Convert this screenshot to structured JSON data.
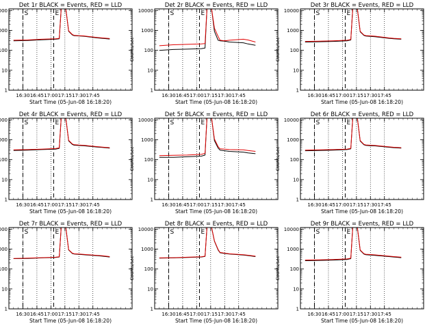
{
  "figure": {
    "ylabel": "Counts/sec",
    "xlabel": "Start Time (05-Jun-08 16:18:20)",
    "colors": {
      "events": "#000000",
      "lld": "#e00000",
      "axes": "#000000"
    }
  },
  "chart_data": [
    {
      "type": "line",
      "title": "Det 1r BLACK = Events, RED = LLD",
      "xlabel": "Start Time (05-Jun-08 16:18:20)",
      "ylabel": "Counts/sec",
      "yscale": "log",
      "ylim": [
        1,
        12000
      ],
      "yticks": [
        1,
        10,
        100,
        1000,
        10000
      ],
      "ytick_labels": [
        "1",
        "10",
        "100",
        "1000",
        "10000"
      ],
      "xticks": [
        "16:30",
        "16:45",
        "17:00",
        "17:15",
        "17:30",
        "17:45"
      ],
      "markers": [
        {
          "label": "S",
          "time": "17:05"
        },
        {
          "label": "E",
          "time": "17:38"
        }
      ],
      "series": [
        {
          "name": "Events",
          "color": "#000000",
          "time_min": [
            1015,
            1030,
            1045,
            1060,
            1064,
            1066,
            1068,
            1071,
            1074,
            1078,
            1080,
            1085,
            1090,
            1105,
            1110,
            1118
          ],
          "values": [
            300,
            310,
            340,
            360,
            380,
            12000,
            12000,
            12000,
            900,
            590,
            540,
            525,
            510,
            420,
            400,
            370
          ]
        },
        {
          "name": "LLD",
          "color": "#e00000",
          "time_min": [
            1015,
            1030,
            1045,
            1060,
            1064,
            1066,
            1068,
            1071,
            1074,
            1078,
            1080,
            1085,
            1090,
            1105,
            1110,
            1118
          ],
          "values": [
            320,
            330,
            360,
            380,
            400,
            12000,
            12000,
            12000,
            950,
            620,
            560,
            545,
            530,
            440,
            420,
            390
          ]
        }
      ]
    },
    {
      "type": "line",
      "title": "Det 2r BLACK = Events, RED = LLD",
      "xlabel": "Start Time (05-Jun-08 16:18:20)",
      "ylabel": "Counts/sec",
      "yscale": "log",
      "ylim": [
        1,
        12000
      ],
      "yticks": [
        1,
        10,
        100,
        1000,
        10000
      ],
      "ytick_labels": [
        "1",
        "10",
        "100",
        "1000",
        "10000"
      ],
      "xticks": [
        "16:30",
        "16:45",
        "17:00",
        "17:15",
        "17:30",
        "17:45"
      ],
      "markers": [
        {
          "label": "S",
          "time": "17:05"
        },
        {
          "label": "E",
          "time": "17:38"
        }
      ],
      "series": [
        {
          "name": "Events",
          "color": "#000000",
          "time_min": [
            1015,
            1030,
            1045,
            1060,
            1064,
            1066,
            1068,
            1071,
            1074,
            1078,
            1080,
            1085,
            1090,
            1105,
            1110,
            1118
          ],
          "values": [
            100,
            110,
            115,
            120,
            130,
            12000,
            12000,
            12000,
            900,
            320,
            300,
            290,
            260,
            240,
            210,
            180
          ]
        },
        {
          "name": "LLD",
          "color": "#e00000",
          "time_min": [
            1015,
            1030,
            1045,
            1060,
            1064,
            1066,
            1068,
            1071,
            1074,
            1078,
            1080,
            1085,
            1090,
            1105,
            1110,
            1118
          ],
          "values": [
            170,
            190,
            200,
            210,
            220,
            12000,
            12000,
            12000,
            1300,
            500,
            320,
            300,
            320,
            360,
            330,
            260
          ]
        }
      ]
    },
    {
      "type": "line",
      "title": "Det 3r BLACK = Events, RED = LLD",
      "xlabel": "Start Time (05-Jun-08 16:18:20)",
      "ylabel": "Counts/sec",
      "yscale": "log",
      "ylim": [
        1,
        12000
      ],
      "yticks": [
        1,
        10,
        100,
        1000,
        10000
      ],
      "ytick_labels": [
        "1",
        "10",
        "100",
        "1000",
        "10000"
      ],
      "xticks": [
        "16:30",
        "16:45",
        "17:00",
        "17:15",
        "17:30",
        "17:45"
      ],
      "markers": [
        {
          "label": "S",
          "time": "17:05"
        },
        {
          "label": "E",
          "time": "17:38"
        }
      ],
      "series": [
        {
          "name": "Events",
          "color": "#000000",
          "time_min": [
            1015,
            1030,
            1045,
            1060,
            1064,
            1066,
            1068,
            1071,
            1074,
            1078,
            1080,
            1085,
            1090,
            1105,
            1110,
            1118
          ],
          "values": [
            260,
            270,
            280,
            300,
            330,
            12000,
            12000,
            12000,
            850,
            560,
            520,
            500,
            480,
            400,
            380,
            360
          ]
        },
        {
          "name": "LLD",
          "color": "#e00000",
          "time_min": [
            1015,
            1030,
            1045,
            1060,
            1064,
            1066,
            1068,
            1071,
            1074,
            1078,
            1080,
            1085,
            1090,
            1105,
            1110,
            1118
          ],
          "values": [
            280,
            290,
            300,
            320,
            350,
            12000,
            12000,
            12000,
            900,
            590,
            550,
            530,
            510,
            420,
            400,
            380
          ]
        }
      ]
    },
    {
      "type": "line",
      "title": "Det 4r BLACK = Events, RED = LLD",
      "xlabel": "Start Time (05-Jun-08 16:18:20)",
      "ylabel": "Counts/sec",
      "yscale": "log",
      "ylim": [
        1,
        12000
      ],
      "yticks": [
        1,
        10,
        100,
        1000,
        10000
      ],
      "ytick_labels": [
        "1",
        "10",
        "100",
        "1000",
        "10000"
      ],
      "xticks": [
        "16:30",
        "16:45",
        "17:00",
        "17:15",
        "17:30",
        "17:45"
      ],
      "markers": [
        {
          "label": "S",
          "time": "17:05"
        },
        {
          "label": "E",
          "time": "17:38"
        }
      ],
      "series": [
        {
          "name": "Events",
          "color": "#000000",
          "time_min": [
            1015,
            1030,
            1045,
            1060,
            1064,
            1066,
            1068,
            1071,
            1074,
            1078,
            1080,
            1085,
            1090,
            1105,
            1110,
            1118
          ],
          "values": [
            290,
            300,
            320,
            340,
            370,
            12000,
            12000,
            12000,
            880,
            580,
            530,
            515,
            500,
            430,
            410,
            380
          ]
        },
        {
          "name": "LLD",
          "color": "#e00000",
          "time_min": [
            1015,
            1030,
            1045,
            1060,
            1064,
            1066,
            1068,
            1071,
            1074,
            1078,
            1080,
            1085,
            1090,
            1105,
            1110,
            1118
          ],
          "values": [
            310,
            320,
            340,
            360,
            390,
            12000,
            12000,
            12000,
            930,
            610,
            560,
            540,
            525,
            450,
            430,
            400
          ]
        }
      ]
    },
    {
      "type": "line",
      "title": "Det 5r BLACK = Events, RED = LLD",
      "xlabel": "Start Time (05-Jun-08 16:18:20)",
      "ylabel": "Counts/sec",
      "yscale": "log",
      "ylim": [
        1,
        12000
      ],
      "yticks": [
        1,
        10,
        100,
        1000,
        10000
      ],
      "ytick_labels": [
        "1",
        "10",
        "100",
        "1000",
        "10000"
      ],
      "xticks": [
        "16:30",
        "16:45",
        "17:00",
        "17:15",
        "17:30",
        "17:45"
      ],
      "markers": [
        {
          "label": "S",
          "time": "17:05"
        },
        {
          "label": "E",
          "time": "17:38"
        }
      ],
      "series": [
        {
          "name": "Events",
          "color": "#000000",
          "time_min": [
            1015,
            1030,
            1045,
            1060,
            1064,
            1066,
            1068,
            1071,
            1074,
            1078,
            1080,
            1085,
            1090,
            1105,
            1110,
            1118
          ],
          "values": [
            130,
            130,
            140,
            150,
            170,
            12000,
            12000,
            12000,
            900,
            380,
            300,
            280,
            260,
            240,
            220,
            200
          ]
        },
        {
          "name": "LLD",
          "color": "#e00000",
          "time_min": [
            1015,
            1030,
            1045,
            1060,
            1064,
            1066,
            1068,
            1071,
            1074,
            1078,
            1080,
            1085,
            1090,
            1105,
            1110,
            1118
          ],
          "values": [
            160,
            165,
            170,
            185,
            210,
            12000,
            12000,
            12000,
            1100,
            450,
            350,
            340,
            320,
            310,
            290,
            260
          ]
        }
      ]
    },
    {
      "type": "line",
      "title": "Det 6r BLACK = Events, RED = LLD",
      "xlabel": "Start Time (05-Jun-08 16:18:20)",
      "ylabel": "Counts/sec",
      "yscale": "log",
      "ylim": [
        1,
        12000
      ],
      "yticks": [
        1,
        10,
        100,
        1000,
        10000
      ],
      "ytick_labels": [
        "1",
        "10",
        "100",
        "1000",
        "10000"
      ],
      "xticks": [
        "16:30",
        "16:45",
        "17:00",
        "17:15",
        "17:30",
        "17:45"
      ],
      "markers": [
        {
          "label": "S",
          "time": "17:05"
        },
        {
          "label": "E",
          "time": "17:38"
        }
      ],
      "series": [
        {
          "name": "Events",
          "color": "#000000",
          "time_min": [
            1015,
            1030,
            1045,
            1060,
            1064,
            1066,
            1068,
            1071,
            1074,
            1078,
            1080,
            1085,
            1090,
            1105,
            1110,
            1118
          ],
          "values": [
            280,
            290,
            300,
            320,
            350,
            12000,
            12000,
            12000,
            860,
            560,
            520,
            500,
            490,
            420,
            400,
            380
          ]
        },
        {
          "name": "LLD",
          "color": "#e00000",
          "time_min": [
            1015,
            1030,
            1045,
            1060,
            1064,
            1066,
            1068,
            1071,
            1074,
            1078,
            1080,
            1085,
            1090,
            1105,
            1110,
            1118
          ],
          "values": [
            300,
            310,
            320,
            340,
            370,
            12000,
            12000,
            12000,
            910,
            590,
            550,
            530,
            515,
            440,
            420,
            400
          ]
        }
      ]
    },
    {
      "type": "line",
      "title": "Det 7r BLACK = Events, RED = LLD",
      "xlabel": "Start Time (05-Jun-08 16:18:20)",
      "ylabel": "Counts/sec",
      "yscale": "log",
      "ylim": [
        1,
        12000
      ],
      "yticks": [
        1,
        10,
        100,
        1000,
        10000
      ],
      "ytick_labels": [
        "1",
        "10",
        "100",
        "1000",
        "10000"
      ],
      "xticks": [
        "16:30",
        "16:45",
        "17:00",
        "17:15",
        "17:30",
        "17:45"
      ],
      "markers": [
        {
          "label": "S",
          "time": "17:05"
        },
        {
          "label": "E",
          "time": "17:38"
        }
      ],
      "series": [
        {
          "name": "Events",
          "color": "#000000",
          "time_min": [
            1015,
            1030,
            1045,
            1060,
            1064,
            1066,
            1068,
            1071,
            1074,
            1078,
            1080,
            1085,
            1090,
            1105,
            1110,
            1118
          ],
          "values": [
            330,
            340,
            360,
            380,
            400,
            12000,
            12000,
            12000,
            900,
            600,
            560,
            540,
            520,
            460,
            440,
            400
          ]
        },
        {
          "name": "LLD",
          "color": "#e00000",
          "time_min": [
            1015,
            1030,
            1045,
            1060,
            1064,
            1066,
            1068,
            1071,
            1074,
            1078,
            1080,
            1085,
            1090,
            1105,
            1110,
            1118
          ],
          "values": [
            340,
            350,
            370,
            390,
            410,
            12000,
            12000,
            12000,
            930,
            620,
            580,
            560,
            540,
            480,
            460,
            420
          ]
        }
      ]
    },
    {
      "type": "line",
      "title": "Det 8r BLACK = Events, RED = LLD",
      "xlabel": "Start Time (05-Jun-08 16:18:20)",
      "ylabel": "Counts/sec",
      "yscale": "log",
      "ylim": [
        1,
        12000
      ],
      "yticks": [
        1,
        10,
        100,
        1000,
        10000
      ],
      "ytick_labels": [
        "1",
        "10",
        "100",
        "1000",
        "10000"
      ],
      "xticks": [
        "16:30",
        "16:45",
        "17:00",
        "17:15",
        "17:30",
        "17:45"
      ],
      "markers": [
        {
          "label": "S",
          "time": "17:05"
        },
        {
          "label": "E",
          "time": "17:38"
        }
      ],
      "series": [
        {
          "name": "Events",
          "color": "#000000",
          "time_min": [
            1015,
            1030,
            1045,
            1060,
            1064,
            1066,
            1068,
            1071,
            1074,
            1078,
            1080,
            1085,
            1090,
            1105,
            1110,
            1118
          ],
          "values": [
            350,
            360,
            380,
            400,
            430,
            12000,
            12000,
            12000,
            2500,
            900,
            650,
            600,
            560,
            500,
            470,
            420
          ]
        },
        {
          "name": "LLD",
          "color": "#e00000",
          "time_min": [
            1015,
            1030,
            1045,
            1060,
            1064,
            1066,
            1068,
            1071,
            1074,
            1078,
            1080,
            1085,
            1090,
            1105,
            1110,
            1118
          ],
          "values": [
            360,
            370,
            390,
            410,
            440,
            12000,
            12000,
            12000,
            2600,
            950,
            680,
            620,
            580,
            520,
            490,
            440
          ]
        }
      ]
    },
    {
      "type": "line",
      "title": "Det 9r BLACK = Events, RED = LLD",
      "xlabel": "Start Time (05-Jun-08 16:18:20)",
      "ylabel": "Counts/sec",
      "yscale": "log",
      "ylim": [
        1,
        12000
      ],
      "yticks": [
        1,
        10,
        100,
        1000,
        10000
      ],
      "ytick_labels": [
        "1",
        "10",
        "100",
        "1000",
        "10000"
      ],
      "xticks": [
        "16:30",
        "16:45",
        "17:00",
        "17:15",
        "17:30",
        "17:45"
      ],
      "markers": [
        {
          "label": "S",
          "time": "17:05"
        },
        {
          "label": "E",
          "time": "17:38"
        }
      ],
      "series": [
        {
          "name": "Events",
          "color": "#000000",
          "time_min": [
            1015,
            1030,
            1045,
            1060,
            1064,
            1066,
            1068,
            1071,
            1074,
            1078,
            1080,
            1085,
            1090,
            1105,
            1110,
            1118
          ],
          "values": [
            260,
            270,
            280,
            300,
            330,
            12000,
            12000,
            12000,
            860,
            560,
            520,
            500,
            480,
            420,
            400,
            370
          ]
        },
        {
          "name": "LLD",
          "color": "#e00000",
          "time_min": [
            1015,
            1030,
            1045,
            1060,
            1064,
            1066,
            1068,
            1071,
            1074,
            1078,
            1080,
            1085,
            1090,
            1105,
            1110,
            1118
          ],
          "values": [
            280,
            290,
            300,
            320,
            350,
            12000,
            12000,
            12000,
            900,
            590,
            550,
            530,
            510,
            440,
            420,
            390
          ]
        }
      ]
    }
  ]
}
